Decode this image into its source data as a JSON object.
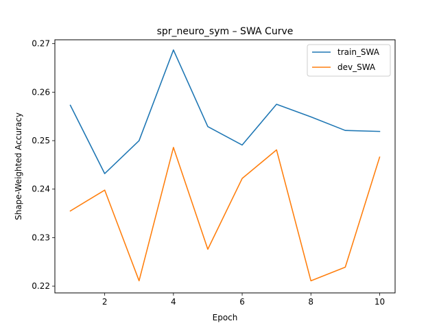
{
  "chart_data": {
    "type": "line",
    "title": "spr_neuro_sym – SWA Curve",
    "xlabel": "Epoch",
    "ylabel": "Shape-Weighted Accuracy",
    "x": [
      1,
      2,
      3,
      4,
      5,
      6,
      7,
      8,
      9,
      10
    ],
    "xlim": [
      0.55,
      10.45
    ],
    "ylim": [
      0.2186,
      0.2708
    ],
    "xticks": [
      2,
      4,
      6,
      8,
      10
    ],
    "xtick_labels": [
      "2",
      "4",
      "6",
      "8",
      "10"
    ],
    "yticks": [
      0.22,
      0.23,
      0.24,
      0.25,
      0.26,
      0.27
    ],
    "ytick_labels": [
      "0.22",
      "0.23",
      "0.24",
      "0.25",
      "0.26",
      "0.27"
    ],
    "grid": false,
    "legend_position": "top-right",
    "series": [
      {
        "name": "train_SWA",
        "color": "#1f77b4",
        "values": [
          0.2573,
          0.2432,
          0.25,
          0.2687,
          0.2529,
          0.2491,
          0.2575,
          0.2549,
          0.2521,
          0.2519
        ]
      },
      {
        "name": "dev_SWA",
        "color": "#ff7f0e",
        "values": [
          0.2355,
          0.2398,
          0.2211,
          0.2486,
          0.2276,
          0.2422,
          0.2481,
          0.2211,
          0.2239,
          0.2466
        ]
      }
    ]
  }
}
